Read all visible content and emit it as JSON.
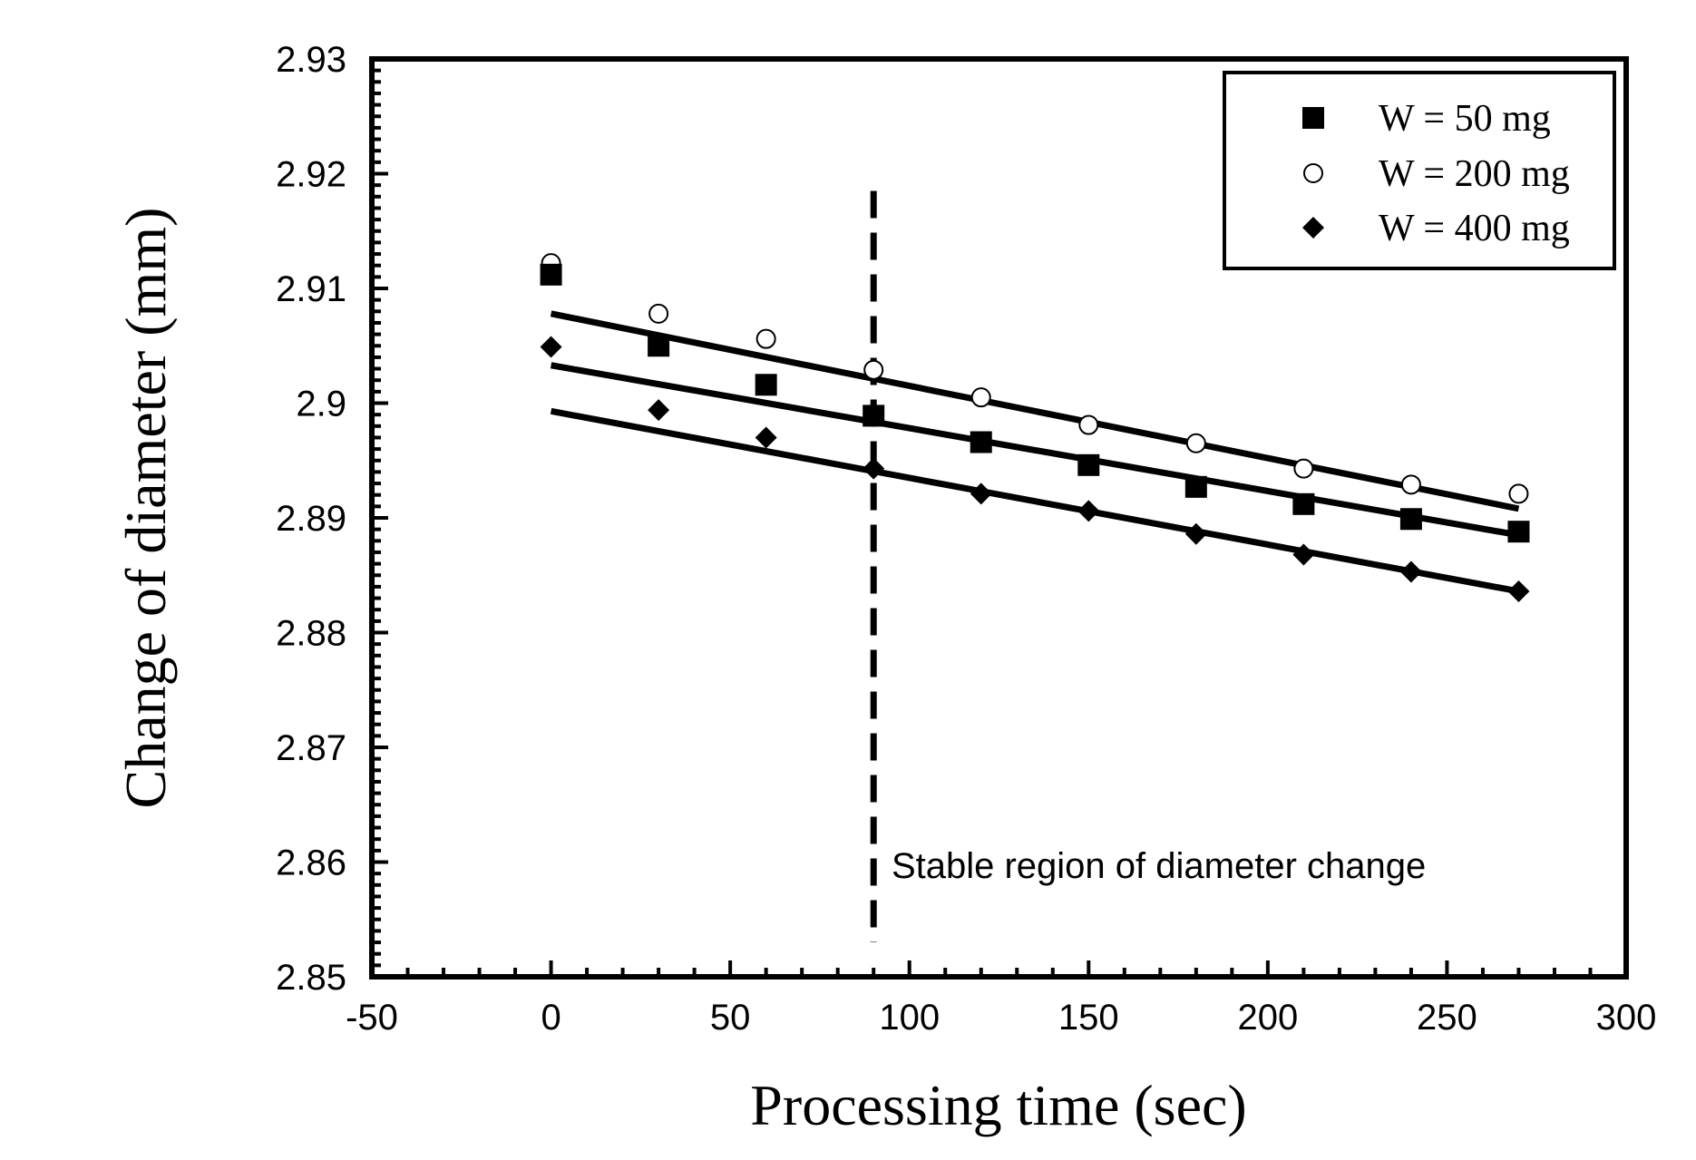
{
  "chart_data": {
    "type": "scatter",
    "title": "",
    "xlabel": "Processing time (sec)",
    "ylabel": "Change of diameter (mm)",
    "xlim": [
      -50,
      300
    ],
    "ylim": [
      2.85,
      2.93
    ],
    "xticks": [
      -50,
      0,
      50,
      100,
      150,
      200,
      250,
      300
    ],
    "xtick_labels": [
      "-50",
      "0",
      "50",
      "100",
      "150",
      "200",
      "250",
      "300"
    ],
    "yticks": [
      2.85,
      2.86,
      2.87,
      2.88,
      2.89,
      2.9,
      2.91,
      2.92,
      2.93
    ],
    "ytick_labels": [
      "2.85",
      "2.86",
      "2.87",
      "2.88",
      "2.89",
      "2.9",
      "2.91",
      "2.92",
      "2.93"
    ],
    "grid": false,
    "legend_position": "top-right",
    "x": [
      0,
      30,
      60,
      90,
      120,
      150,
      180,
      210,
      240,
      270
    ],
    "series": [
      {
        "name": "W = 50 mg",
        "marker": "square-filled",
        "values": [
          2.9112,
          2.905,
          2.9016,
          2.8989,
          2.8966,
          2.8946,
          2.8927,
          2.8912,
          2.8899,
          2.8888
        ],
        "fit": {
          "x": [
            0,
            270
          ],
          "y": [
            2.9033,
            2.8885
          ]
        }
      },
      {
        "name": "W = 200 mg",
        "marker": "circle-open",
        "values": [
          2.9122,
          2.9078,
          2.9056,
          2.9029,
          2.9005,
          2.8981,
          2.8965,
          2.8943,
          2.8929,
          2.8921
        ],
        "fit": {
          "x": [
            0,
            270
          ],
          "y": [
            2.9078,
            2.8908
          ]
        }
      },
      {
        "name": "W = 400 mg",
        "marker": "diamond-filled",
        "values": [
          2.9049,
          2.8994,
          2.897,
          2.8943,
          2.8921,
          2.8906,
          2.8886,
          2.8868,
          2.8853,
          2.8836
        ],
        "fit": {
          "x": [
            0,
            270
          ],
          "y": [
            2.8993,
            2.8836
          ]
        }
      }
    ],
    "reference_line": {
      "x": 90,
      "y_top": 2.9185,
      "y_bottom": 2.853,
      "style": "dashed"
    },
    "annotation": {
      "text": "Stable region of diameter change",
      "x": 95,
      "y": 2.8586
    }
  }
}
